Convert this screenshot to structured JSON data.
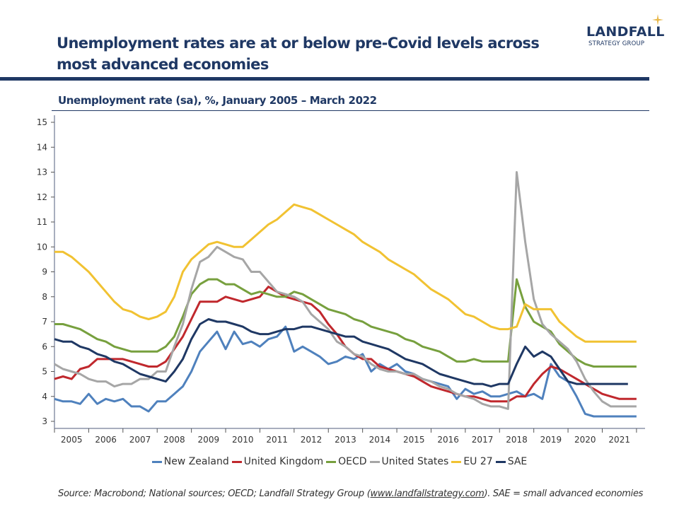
{
  "header": {
    "title": "Unemployment rates are at or below pre-Covid levels across most advanced economies",
    "logo_main": "LANDFALL",
    "logo_sub": "STRATEGY GROUP",
    "logo_icon": "star-icon"
  },
  "source": {
    "prefix": "Source: Macrobond; National sources; OECD; Landfall Strategy Group (",
    "link": "www.landfallstrategy.com",
    "suffix": "). SAE = small advanced economies"
  },
  "chart_data": {
    "type": "line",
    "title": "Unemployment rate (sa), %, January 2005 – March 2022",
    "xlabel": "",
    "ylabel": "",
    "ylim": [
      3,
      15
    ],
    "xlim": [
      2005,
      2022.25
    ],
    "yticks": [
      3,
      4,
      5,
      6,
      7,
      8,
      9,
      10,
      11,
      12,
      13,
      14,
      15
    ],
    "xtick_labels": [
      "2005",
      "2006",
      "2007",
      "2008",
      "2009",
      "2010",
      "2011",
      "2012",
      "2013",
      "2014",
      "2015",
      "2016",
      "2017",
      "2018",
      "2019",
      "2020",
      "2021"
    ],
    "grid": false,
    "legend": "bottom",
    "x_start": 2005.0,
    "x_step": 0.25,
    "series": [
      {
        "name": "New Zealand",
        "color": "#4f81bd",
        "values": [
          3.9,
          3.8,
          3.8,
          3.7,
          4.1,
          3.7,
          3.9,
          3.8,
          3.9,
          3.6,
          3.6,
          3.4,
          3.8,
          3.8,
          4.1,
          4.4,
          5.0,
          5.8,
          6.2,
          6.6,
          5.9,
          6.6,
          6.1,
          6.2,
          6.0,
          6.3,
          6.4,
          6.8,
          5.8,
          6.0,
          5.8,
          5.6,
          5.3,
          5.4,
          5.6,
          5.5,
          5.7,
          5.0,
          5.3,
          5.1,
          5.3,
          5.0,
          4.9,
          4.7,
          4.6,
          4.5,
          4.4,
          3.9,
          4.3,
          4.1,
          4.2,
          4.0,
          4.0,
          4.1,
          4.2,
          4.0,
          4.1,
          3.9,
          5.3,
          4.8,
          4.6,
          4.0,
          3.3,
          3.2,
          3.2,
          3.2,
          3.2,
          3.2,
          3.2,
          3.2
        ]
      },
      {
        "name": "United Kingdom",
        "color": "#c0282d",
        "values": [
          4.7,
          4.8,
          4.7,
          5.1,
          5.2,
          5.5,
          5.5,
          5.5,
          5.5,
          5.4,
          5.3,
          5.2,
          5.2,
          5.4,
          5.9,
          6.4,
          7.1,
          7.8,
          7.8,
          7.8,
          8.0,
          7.9,
          7.8,
          7.9,
          8.0,
          8.4,
          8.2,
          8.0,
          7.9,
          7.8,
          7.7,
          7.4,
          6.9,
          6.5,
          6.0,
          5.7,
          5.5,
          5.5,
          5.2,
          5.1,
          5.0,
          4.9,
          4.8,
          4.6,
          4.4,
          4.3,
          4.2,
          4.1,
          4.0,
          4.0,
          3.9,
          3.8,
          3.8,
          3.8,
          4.0,
          4.0,
          4.5,
          4.9,
          5.2,
          5.1,
          4.9,
          4.7,
          4.5,
          4.3,
          4.1,
          4.0,
          3.9,
          3.9,
          3.9,
          3.9
        ]
      },
      {
        "name": "OECD",
        "color": "#77a03e",
        "values": [
          6.9,
          6.9,
          6.8,
          6.7,
          6.5,
          6.3,
          6.2,
          6.0,
          5.9,
          5.8,
          5.8,
          5.8,
          5.8,
          6.0,
          6.4,
          7.2,
          8.1,
          8.5,
          8.7,
          8.7,
          8.5,
          8.5,
          8.3,
          8.1,
          8.2,
          8.1,
          8.0,
          8.0,
          8.2,
          8.1,
          7.9,
          7.7,
          7.5,
          7.4,
          7.3,
          7.1,
          7.0,
          6.8,
          6.7,
          6.6,
          6.5,
          6.3,
          6.2,
          6.0,
          5.9,
          5.8,
          5.6,
          5.4,
          5.4,
          5.5,
          5.4,
          5.4,
          5.4,
          5.4,
          8.7,
          7.6,
          7.0,
          6.8,
          6.6,
          6.1,
          5.8,
          5.5,
          5.3,
          5.2,
          5.2,
          5.2,
          5.2,
          5.2,
          5.2,
          5.2
        ]
      },
      {
        "name": "United States",
        "color": "#a6a6a6",
        "values": [
          5.3,
          5.1,
          5.0,
          4.9,
          4.7,
          4.6,
          4.6,
          4.4,
          4.5,
          4.5,
          4.7,
          4.7,
          5.0,
          5.0,
          6.0,
          6.9,
          8.3,
          9.4,
          9.6,
          10.0,
          9.8,
          9.6,
          9.5,
          9.0,
          9.0,
          8.6,
          8.2,
          8.1,
          8.0,
          7.8,
          7.3,
          7.0,
          6.7,
          6.2,
          6.0,
          5.7,
          5.6,
          5.3,
          5.1,
          5.0,
          5.0,
          4.9,
          4.9,
          4.7,
          4.6,
          4.4,
          4.3,
          4.1,
          4.0,
          3.9,
          3.7,
          3.6,
          3.6,
          3.5,
          13.0,
          10.2,
          7.9,
          6.9,
          6.5,
          6.2,
          5.9,
          5.4,
          4.7,
          4.2,
          3.8,
          3.6,
          3.6,
          3.6,
          3.6,
          3.6
        ]
      },
      {
        "name": "EU 27",
        "color": "#f1c232",
        "values": [
          9.8,
          9.8,
          9.6,
          9.3,
          9.0,
          8.6,
          8.2,
          7.8,
          7.5,
          7.4,
          7.2,
          7.1,
          7.2,
          7.4,
          8.0,
          9.0,
          9.5,
          9.8,
          10.1,
          10.2,
          10.1,
          10.0,
          10.0,
          10.3,
          10.6,
          10.9,
          11.1,
          11.4,
          11.7,
          11.6,
          11.5,
          11.3,
          11.1,
          10.9,
          10.7,
          10.5,
          10.2,
          10.0,
          9.8,
          9.5,
          9.3,
          9.1,
          8.9,
          8.6,
          8.3,
          8.1,
          7.9,
          7.6,
          7.3,
          7.2,
          7.0,
          6.8,
          6.7,
          6.7,
          6.8,
          7.7,
          7.5,
          7.5,
          7.5,
          7.0,
          6.7,
          6.4,
          6.2,
          6.2,
          6.2,
          6.2,
          6.2,
          6.2,
          6.2,
          6.2
        ]
      },
      {
        "name": "SAE",
        "color": "#1f3864",
        "values": [
          6.3,
          6.2,
          6.2,
          6.0,
          5.9,
          5.7,
          5.6,
          5.4,
          5.3,
          5.1,
          4.9,
          4.8,
          4.7,
          4.6,
          5.0,
          5.5,
          6.3,
          6.9,
          7.1,
          7.0,
          7.0,
          6.9,
          6.8,
          6.6,
          6.5,
          6.5,
          6.6,
          6.7,
          6.7,
          6.8,
          6.8,
          6.7,
          6.6,
          6.5,
          6.4,
          6.4,
          6.2,
          6.1,
          6.0,
          5.9,
          5.7,
          5.5,
          5.4,
          5.3,
          5.1,
          4.9,
          4.8,
          4.7,
          4.6,
          4.5,
          4.5,
          4.4,
          4.5,
          4.5,
          5.3,
          6.0,
          5.6,
          5.8,
          5.6,
          5.1,
          4.6,
          4.5,
          4.5,
          4.5,
          4.5,
          4.5,
          4.5,
          4.5,
          4.5,
          4.5
        ]
      }
    ],
    "series_end": [
      2022.17,
      2022.17,
      2022.1,
      2022.17,
      2022.17,
      2021.92
    ]
  }
}
